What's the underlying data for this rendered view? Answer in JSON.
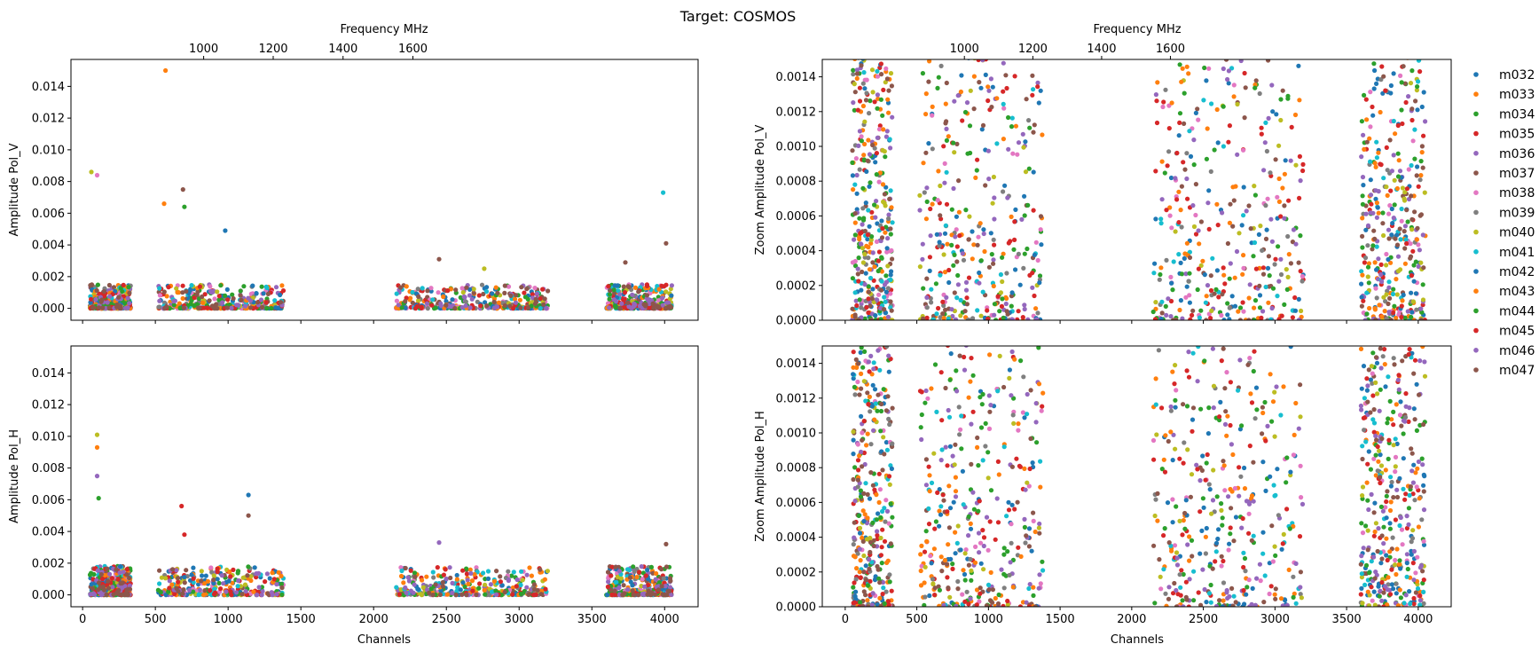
{
  "figure": {
    "title": "Target: COSMOS"
  },
  "colors": [
    "#1f77b4",
    "#ff7f0e",
    "#2ca02c",
    "#d62728",
    "#9467bd",
    "#8c564b",
    "#e377c2",
    "#7f7f7f",
    "#bcbd22",
    "#17becf",
    "#1f77b4",
    "#ff7f0e",
    "#2ca02c",
    "#d62728",
    "#9467bd",
    "#8c564b"
  ],
  "legend": [
    "m032",
    "m033",
    "m034",
    "m035",
    "m036",
    "m037",
    "m038",
    "m039",
    "m040",
    "m041",
    "m042",
    "m043",
    "m044",
    "m045",
    "m046",
    "m047"
  ],
  "chart_data": [
    {
      "type": "scatter",
      "panel": "top-left",
      "ylabel": "Amplitude Pol_V",
      "x2label": "Frequency MHz",
      "xlim": [
        -80,
        4230
      ],
      "ylim": [
        -0.00075,
        0.0157
      ],
      "yticks": [
        0.0,
        0.002,
        0.004,
        0.006,
        0.008,
        0.01,
        0.012,
        0.014
      ],
      "x2ticks": [
        "1000",
        "1200",
        "1400",
        "1600"
      ],
      "channel_bands": [
        [
          50,
          330
        ],
        [
          520,
          1380
        ],
        [
          2150,
          3200
        ],
        [
          3600,
          4050
        ]
      ],
      "typical_max": 0.0015,
      "notable_points": [
        {
          "series": "m033",
          "x": 570,
          "y": 0.015
        },
        {
          "series": "m041",
          "x": 3990,
          "y": 0.0073
        },
        {
          "series": "m040",
          "x": 60,
          "y": 0.0086
        },
        {
          "series": "m038",
          "x": 100,
          "y": 0.0084
        },
        {
          "series": "m037",
          "x": 690,
          "y": 0.0075
        },
        {
          "series": "m033",
          "x": 560,
          "y": 0.0066
        },
        {
          "series": "m034",
          "x": 700,
          "y": 0.0064
        },
        {
          "series": "m037",
          "x": 2450,
          "y": 0.0031
        },
        {
          "series": "m040",
          "x": 2760,
          "y": 0.0025
        },
        {
          "series": "m042",
          "x": 980,
          "y": 0.0049
        },
        {
          "series": "m037",
          "x": 4010,
          "y": 0.0041
        },
        {
          "series": "m037",
          "x": 3730,
          "y": 0.0029
        }
      ]
    },
    {
      "type": "scatter",
      "panel": "top-right",
      "ylabel": "Zoom Amplitude Pol_V",
      "x2label": "Frequency MHz",
      "xlim": [
        -160,
        4230
      ],
      "ylim": [
        0.0,
        0.0015
      ],
      "yticks": [
        0.0,
        0.0002,
        0.0004,
        0.0006,
        0.0008,
        0.001,
        0.0012,
        0.0014
      ],
      "x2ticks": [
        "1000",
        "1200",
        "1400",
        "1600"
      ],
      "channel_bands": [
        [
          50,
          330
        ],
        [
          520,
          1380
        ],
        [
          2150,
          3200
        ],
        [
          3600,
          4050
        ]
      ]
    },
    {
      "type": "scatter",
      "panel": "bottom-left",
      "ylabel": "Amplitude Pol_H",
      "xlabel": "Channels",
      "xlim": [
        -80,
        4230
      ],
      "ylim": [
        -0.00075,
        0.0157
      ],
      "yticks": [
        0.0,
        0.002,
        0.004,
        0.006,
        0.008,
        0.01,
        0.012,
        0.014
      ],
      "xticks": [
        0,
        500,
        1000,
        1500,
        2000,
        2500,
        3000,
        3500,
        4000
      ],
      "channel_bands": [
        [
          50,
          330
        ],
        [
          520,
          1380
        ],
        [
          2150,
          3200
        ],
        [
          3600,
          4050
        ]
      ],
      "typical_max": 0.0018,
      "notable_points": [
        {
          "series": "m040",
          "x": 100,
          "y": 0.0101
        },
        {
          "series": "m043",
          "x": 100,
          "y": 0.0093
        },
        {
          "series": "m036",
          "x": 100,
          "y": 0.0075
        },
        {
          "series": "m034",
          "x": 110,
          "y": 0.0061
        },
        {
          "series": "m042",
          "x": 1140,
          "y": 0.0063
        },
        {
          "series": "m035",
          "x": 680,
          "y": 0.0056
        },
        {
          "series": "m037",
          "x": 1140,
          "y": 0.005
        },
        {
          "series": "m036",
          "x": 2450,
          "y": 0.0033
        },
        {
          "series": "m037",
          "x": 4010,
          "y": 0.0032
        },
        {
          "series": "m035",
          "x": 700,
          "y": 0.0038
        }
      ]
    },
    {
      "type": "scatter",
      "panel": "bottom-right",
      "ylabel": "Zoom Amplitude Pol_H",
      "xlabel": "Channels",
      "xlim": [
        -160,
        4230
      ],
      "ylim": [
        0.0,
        0.0015
      ],
      "yticks": [
        0.0,
        0.0002,
        0.0004,
        0.0006,
        0.0008,
        0.001,
        0.0012,
        0.0014
      ],
      "xticks": [
        0,
        500,
        1000,
        1500,
        2000,
        2500,
        3000,
        3500,
        4000
      ],
      "channel_bands": [
        [
          50,
          330
        ],
        [
          520,
          1380
        ],
        [
          2150,
          3200
        ],
        [
          3600,
          4050
        ]
      ]
    }
  ]
}
